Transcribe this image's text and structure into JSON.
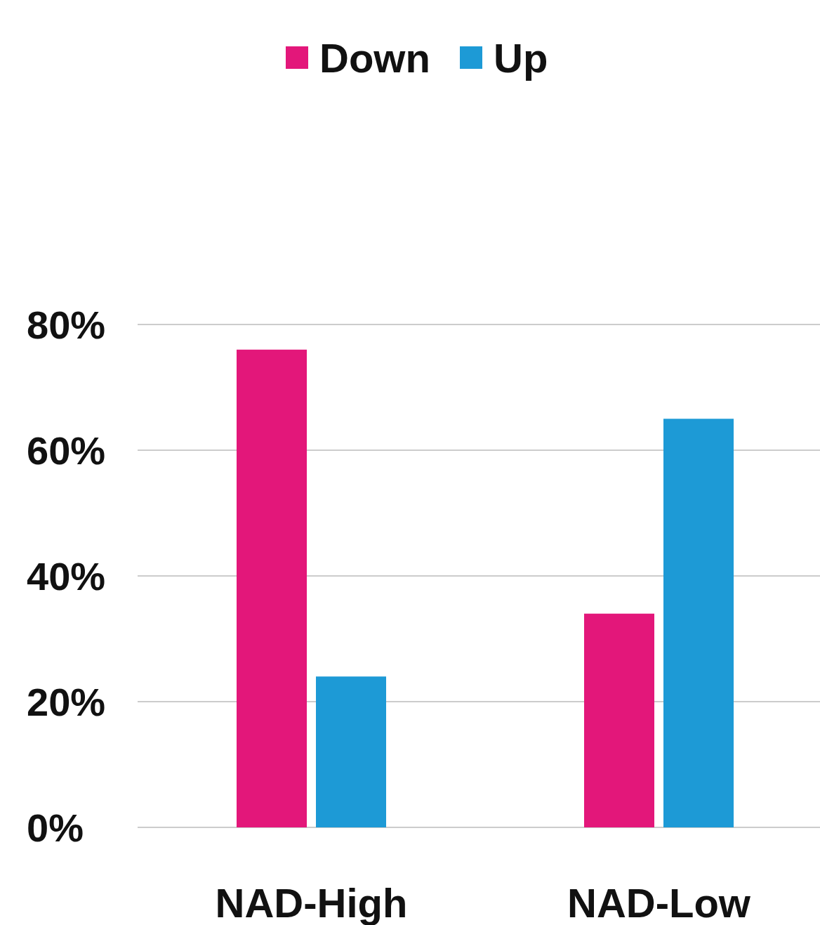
{
  "chart_data": {
    "type": "bar",
    "categories": [
      "NAD-High",
      "NAD-Low"
    ],
    "series": [
      {
        "name": "Down",
        "color": "#e3177a",
        "values": [
          76,
          34
        ]
      },
      {
        "name": "Up",
        "color": "#1d9ad6",
        "values": [
          24,
          65
        ]
      }
    ],
    "ylim": [
      0,
      80
    ],
    "yticks": [
      {
        "value": 0,
        "label": "0%"
      },
      {
        "value": 20,
        "label": "20%"
      },
      {
        "value": 40,
        "label": "40%"
      },
      {
        "value": 60,
        "label": "60%"
      },
      {
        "value": 80,
        "label": "80%"
      }
    ],
    "grid": "y",
    "legend": "top"
  }
}
